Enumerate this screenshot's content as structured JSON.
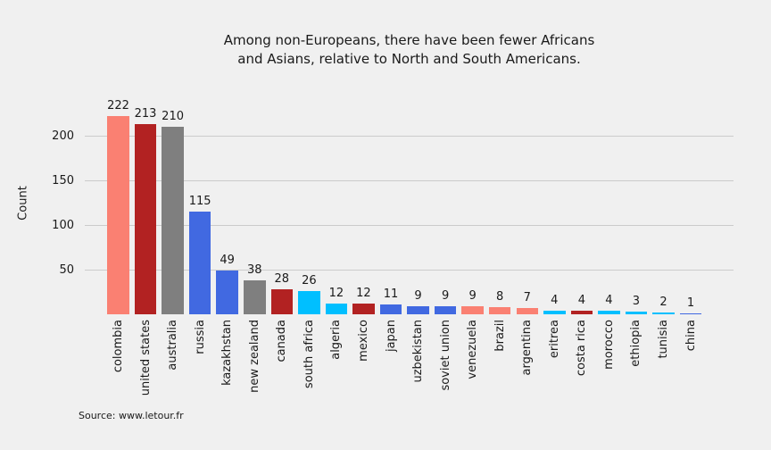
{
  "title": {
    "line1": "Among non-Europeans, there have been fewer Africans",
    "line2": "and Asians, relative to North and South Americans."
  },
  "source": "Source: www.letour.fr",
  "chart_data": {
    "type": "bar",
    "title": "Among non-Europeans, there have been fewer Africans and Asians, relative to North and South Americans.",
    "xlabel": "",
    "ylabel": "Count",
    "ylim": [
      0,
      250
    ],
    "yticks": [
      50,
      100,
      150,
      200
    ],
    "grid": true,
    "legend": false,
    "background_color": "#F0F0F0",
    "gridline_color": "#CBCBCB",
    "categories": [
      "colombia",
      "united states",
      "australia",
      "russia",
      "kazakhstan",
      "new zealand",
      "canada",
      "south africa",
      "algeria",
      "mexico",
      "japan",
      "uzbekistan",
      "soviet union",
      "venezuela",
      "brazil",
      "argentina",
      "eritrea",
      "costa rica",
      "morocco",
      "ethiopia",
      "tunisia",
      "china"
    ],
    "values": [
      222,
      213,
      210,
      115,
      49,
      38,
      28,
      26,
      12,
      12,
      11,
      9,
      9,
      9,
      8,
      7,
      4,
      4,
      4,
      3,
      2,
      1
    ],
    "bar_color_names": [
      "salmon",
      "firebrick",
      "gray",
      "royalblue",
      "royalblue",
      "gray",
      "firebrick",
      "deepskyblue",
      "deepskyblue",
      "firebrick",
      "royalblue",
      "royalblue",
      "royalblue",
      "salmon",
      "salmon",
      "salmon",
      "deepskyblue",
      "firebrick",
      "deepskyblue",
      "deepskyblue",
      "deepskyblue",
      "royalblue"
    ],
    "palette": {
      "salmon": "#FA8072",
      "firebrick": "#B22222",
      "gray": "#7F7F7F",
      "royalblue": "#4169E1",
      "deepskyblue": "#00BFFF"
    }
  }
}
